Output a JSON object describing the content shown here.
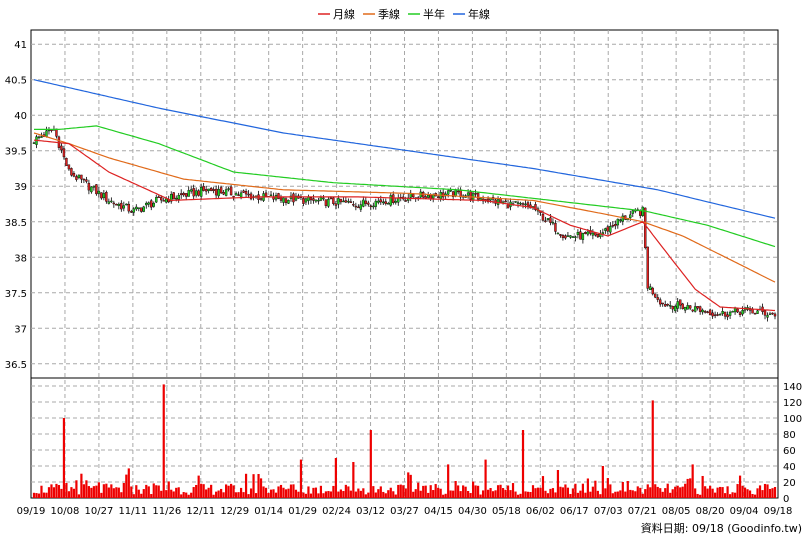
{
  "chart_data": {
    "type": "candlestick_volume",
    "legend": [
      {
        "label": "月線",
        "color": "#dd2222"
      },
      {
        "label": "季線",
        "color": "#e06a1a"
      },
      {
        "label": "半年",
        "color": "#22cc22"
      },
      {
        "label": "年線",
        "color": "#2266dd"
      }
    ],
    "up_color": "#22cc22",
    "down_color": "#dd2222",
    "volume_color": "#ee0000",
    "price_axis": {
      "min": 36.3,
      "max": 41.2,
      "ticks": [
        "41",
        "40.5",
        "40",
        "39.5",
        "39",
        "38.5",
        "38",
        "37.5",
        "37",
        "36.5"
      ]
    },
    "volume_axis": {
      "min": 0,
      "max": 150,
      "ticks": [
        "0",
        "20",
        "40",
        "60",
        "80",
        "100",
        "120",
        "140"
      ]
    },
    "x_tick_labels": [
      "09/19",
      "10/08",
      "10/27",
      "11/11",
      "11/26",
      "12/11",
      "12/29",
      "01/14",
      "01/29",
      "02/24",
      "03/12",
      "03/27",
      "04/15",
      "04/30",
      "05/18",
      "06/02",
      "06/17",
      "07/03",
      "07/21",
      "08/05",
      "08/20",
      "09/04",
      "09/18"
    ],
    "key_points": {
      "close": [
        [
          0,
          39.65
        ],
        [
          8,
          39.8
        ],
        [
          14,
          39.2
        ],
        [
          30,
          38.8
        ],
        [
          40,
          38.65
        ],
        [
          50,
          38.8
        ],
        [
          70,
          38.95
        ],
        [
          90,
          38.85
        ],
        [
          110,
          38.8
        ],
        [
          130,
          38.75
        ],
        [
          150,
          38.85
        ],
        [
          170,
          38.9
        ],
        [
          190,
          38.75
        ],
        [
          200,
          38.7
        ],
        [
          206,
          38.5
        ],
        [
          213,
          38.3
        ],
        [
          226,
          38.3
        ],
        [
          236,
          38.55
        ],
        [
          240,
          38.6
        ],
        [
          244,
          38.65
        ],
        [
          246,
          37.6
        ],
        [
          252,
          37.35
        ],
        [
          262,
          37.3
        ],
        [
          275,
          37.2
        ],
        [
          285,
          37.25
        ],
        [
          297,
          37.2
        ]
      ],
      "ma20": [
        [
          0,
          39.65
        ],
        [
          14,
          39.6
        ],
        [
          30,
          39.2
        ],
        [
          55,
          38.8
        ],
        [
          90,
          38.85
        ],
        [
          130,
          38.85
        ],
        [
          180,
          38.8
        ],
        [
          200,
          38.7
        ],
        [
          215,
          38.45
        ],
        [
          230,
          38.3
        ],
        [
          244,
          38.5
        ],
        [
          255,
          38.0
        ],
        [
          265,
          37.55
        ],
        [
          275,
          37.3
        ],
        [
          297,
          37.25
        ]
      ],
      "ma60": [
        [
          0,
          39.75
        ],
        [
          14,
          39.6
        ],
        [
          30,
          39.4
        ],
        [
          60,
          39.1
        ],
        [
          100,
          38.95
        ],
        [
          150,
          38.9
        ],
        [
          200,
          38.8
        ],
        [
          230,
          38.6
        ],
        [
          244,
          38.5
        ],
        [
          260,
          38.3
        ],
        [
          280,
          37.95
        ],
        [
          297,
          37.65
        ]
      ],
      "ma120": [
        [
          0,
          39.8
        ],
        [
          10,
          39.8
        ],
        [
          25,
          39.85
        ],
        [
          50,
          39.6
        ],
        [
          80,
          39.2
        ],
        [
          120,
          39.05
        ],
        [
          170,
          38.95
        ],
        [
          220,
          38.75
        ],
        [
          245,
          38.65
        ],
        [
          270,
          38.45
        ],
        [
          297,
          38.15
        ]
      ],
      "ma240": [
        [
          0,
          40.5
        ],
        [
          50,
          40.1
        ],
        [
          100,
          39.75
        ],
        [
          150,
          39.5
        ],
        [
          200,
          39.25
        ],
        [
          250,
          38.95
        ],
        [
          297,
          38.55
        ]
      ]
    },
    "volume_spikes": [
      [
        12,
        100
      ],
      [
        38,
        37
      ],
      [
        52,
        142
      ],
      [
        66,
        28
      ],
      [
        90,
        30
      ],
      [
        107,
        48
      ],
      [
        121,
        50
      ],
      [
        128,
        45
      ],
      [
        135,
        85
      ],
      [
        150,
        32
      ],
      [
        166,
        42
      ],
      [
        181,
        48
      ],
      [
        196,
        85
      ],
      [
        210,
        35
      ],
      [
        228,
        40
      ],
      [
        236,
        20
      ],
      [
        248,
        122
      ],
      [
        264,
        42
      ],
      [
        283,
        28
      ]
    ]
  },
  "source_label": "資料日期: 09/18 (Goodinfo.tw)"
}
